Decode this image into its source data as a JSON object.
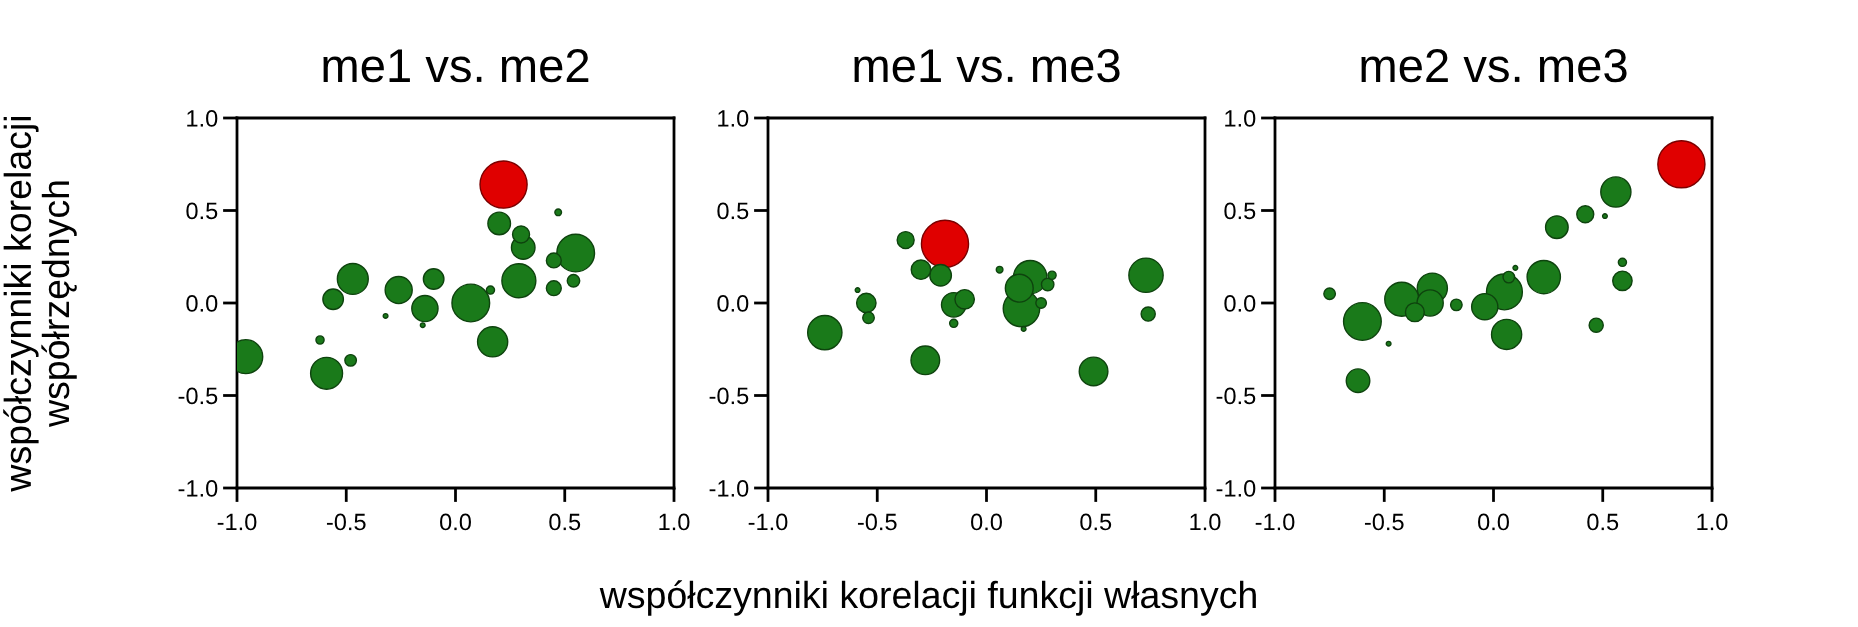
{
  "chart_data": [
    {
      "type": "bubble",
      "title": "me1 vs. me2",
      "ylabel": "współczynniki korelacji\nwspółrzędnych",
      "x": [
        0.22,
        -0.96,
        -0.59,
        -0.56,
        -0.47,
        -0.62,
        -0.48,
        -0.32,
        -0.26,
        -0.1,
        -0.14,
        -0.15,
        0.07,
        0.17,
        0.16,
        0.2,
        0.29,
        0.31,
        0.3,
        0.47,
        0.45,
        0.55,
        0.45,
        0.54
      ],
      "values": [
        0.64,
        -0.29,
        -0.38,
        0.02,
        0.13,
        -0.2,
        -0.31,
        -0.07,
        0.07,
        0.13,
        -0.03,
        -0.12,
        0.0,
        -0.21,
        0.07,
        0.43,
        0.12,
        0.3,
        0.37,
        0.49,
        0.23,
        0.27,
        0.08,
        0.12
      ],
      "sizes": [
        1,
        0.52,
        0.46,
        0.19,
        0.43,
        0.03,
        0.06,
        0.01,
        0.33,
        0.19,
        0.31,
        0.01,
        0.64,
        0.41,
        0.03,
        0.23,
        0.52,
        0.25,
        0.13,
        0.02,
        0.1,
        0.64,
        0.1,
        0.07
      ],
      "colors": [
        "#e00000",
        "#1a7a1a",
        "#1a7a1a",
        "#1a7a1a",
        "#1a7a1a",
        "#1a7a1a",
        "#1a7a1a",
        "#1a7a1a",
        "#1a7a1a",
        "#1a7a1a",
        "#1a7a1a",
        "#1a7a1a",
        "#1a7a1a",
        "#1a7a1a",
        "#1a7a1a",
        "#1a7a1a",
        "#1a7a1a",
        "#1a7a1a",
        "#1a7a1a",
        "#1a7a1a",
        "#1a7a1a",
        "#1a7a1a",
        "#1a7a1a",
        "#1a7a1a"
      ],
      "xlim": [
        -1,
        1
      ],
      "ylim": [
        -1,
        1
      ],
      "xticks": [
        {
          "value": -1,
          "label": "-1.0"
        },
        {
          "value": -0.5,
          "label": "-0.5"
        },
        {
          "value": 0,
          "label": "0.0"
        },
        {
          "value": 0.5,
          "label": "0.5"
        },
        {
          "value": 1,
          "label": "1.0"
        }
      ],
      "yticks": [
        {
          "value": -1,
          "label": "-1.0"
        },
        {
          "value": -0.5,
          "label": "-0.5"
        },
        {
          "value": 0,
          "label": "0.0"
        },
        {
          "value": 0.5,
          "label": "0.5"
        },
        {
          "value": 1,
          "label": "1.0"
        }
      ]
    },
    {
      "type": "bubble",
      "title": "me1 vs. me3",
      "xlabel": "współczynniki korelacji funkcji własnych",
      "x": [
        -0.19,
        -0.74,
        -0.55,
        -0.54,
        -0.59,
        -0.37,
        -0.3,
        -0.21,
        -0.28,
        -0.15,
        -0.1,
        -0.15,
        0.06,
        0.2,
        0.15,
        0.16,
        0.28,
        0.3,
        0.25,
        0.17,
        0.49,
        0.73,
        0.74
      ],
      "values": [
        0.32,
        -0.16,
        0.0,
        -0.08,
        0.07,
        0.34,
        0.18,
        0.15,
        -0.31,
        -0.01,
        0.02,
        -0.11,
        0.18,
        0.14,
        0.08,
        -0.03,
        0.1,
        0.15,
        0.0,
        -0.14,
        -0.37,
        0.15,
        -0.06
      ],
      "sizes": [
        1,
        0.53,
        0.17,
        0.06,
        0.01,
        0.13,
        0.17,
        0.21,
        0.37,
        0.27,
        0.17,
        0.03,
        0.02,
        0.5,
        0.35,
        0.6,
        0.07,
        0.03,
        0.05,
        0.01,
        0.37,
        0.53,
        0.09
      ],
      "colors": [
        "#e00000",
        "#1a7a1a",
        "#1a7a1a",
        "#1a7a1a",
        "#1a7a1a",
        "#1a7a1a",
        "#1a7a1a",
        "#1a7a1a",
        "#1a7a1a",
        "#1a7a1a",
        "#1a7a1a",
        "#1a7a1a",
        "#1a7a1a",
        "#1a7a1a",
        "#1a7a1a",
        "#1a7a1a",
        "#1a7a1a",
        "#1a7a1a",
        "#1a7a1a",
        "#1a7a1a",
        "#1a7a1a",
        "#1a7a1a",
        "#1a7a1a"
      ],
      "xlim": [
        -1,
        1
      ],
      "ylim": [
        -1,
        1
      ],
      "xticks": [
        {
          "value": -1,
          "label": "-1.0"
        },
        {
          "value": -0.5,
          "label": "-0.5"
        },
        {
          "value": 0,
          "label": "0.0"
        },
        {
          "value": 0.5,
          "label": "0.5"
        },
        {
          "value": 1,
          "label": "1.0"
        }
      ],
      "yticks": [
        {
          "value": -1,
          "label": "-1.0"
        },
        {
          "value": -0.5,
          "label": "-0.5"
        },
        {
          "value": 0,
          "label": "0.0"
        },
        {
          "value": 0.5,
          "label": "0.5"
        },
        {
          "value": 1,
          "label": "1.0"
        }
      ]
    },
    {
      "type": "bubble",
      "title": "me2 vs. me3",
      "x": [
        0.86,
        -0.75,
        -0.6,
        -0.62,
        -0.48,
        -0.42,
        -0.36,
        -0.28,
        -0.29,
        -0.17,
        -0.04,
        0.05,
        0.07,
        0.1,
        0.06,
        0.23,
        0.29,
        0.42,
        0.51,
        0.56,
        0.59,
        0.59,
        0.47
      ],
      "values": [
        0.75,
        0.05,
        -0.1,
        -0.42,
        -0.22,
        0.02,
        -0.05,
        0.08,
        0.0,
        -0.01,
        -0.02,
        0.06,
        0.14,
        0.19,
        -0.17,
        0.14,
        0.41,
        0.48,
        0.47,
        0.6,
        0.22,
        0.12,
        -0.12
      ],
      "sizes": [
        1,
        0.06,
        0.64,
        0.25,
        0.01,
        0.52,
        0.16,
        0.41,
        0.31,
        0.06,
        0.31,
        0.58,
        0.06,
        0.01,
        0.41,
        0.5,
        0.23,
        0.13,
        0.01,
        0.41,
        0.03,
        0.17,
        0.09
      ],
      "colors": [
        "#e00000",
        "#1a7a1a",
        "#1a7a1a",
        "#1a7a1a",
        "#1a7a1a",
        "#1a7a1a",
        "#1a7a1a",
        "#1a7a1a",
        "#1a7a1a",
        "#1a7a1a",
        "#1a7a1a",
        "#1a7a1a",
        "#1a7a1a",
        "#1a7a1a",
        "#1a7a1a",
        "#1a7a1a",
        "#1a7a1a",
        "#1a7a1a",
        "#1a7a1a",
        "#1a7a1a",
        "#1a7a1a",
        "#1a7a1a",
        "#1a7a1a"
      ],
      "xlim": [
        -1,
        1
      ],
      "ylim": [
        -1,
        1
      ],
      "xticks": [
        {
          "value": -1,
          "label": "-1.0"
        },
        {
          "value": -0.5,
          "label": "-0.5"
        },
        {
          "value": 0,
          "label": "0.0"
        },
        {
          "value": 0.5,
          "label": "0.5"
        },
        {
          "value": 1,
          "label": "1.0"
        }
      ],
      "yticks": [
        {
          "value": -1,
          "label": "-1.0"
        },
        {
          "value": -0.5,
          "label": "-0.5"
        },
        {
          "value": 0,
          "label": "0.0"
        },
        {
          "value": 0.5,
          "label": "0.5"
        },
        {
          "value": 1,
          "label": "1.0"
        }
      ]
    }
  ]
}
